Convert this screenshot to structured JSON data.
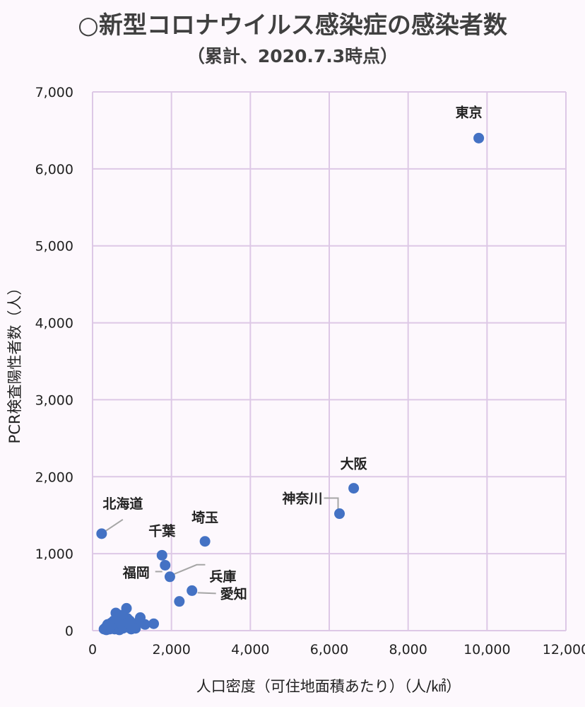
{
  "chart_data": {
    "type": "scatter",
    "title": "○新型コロナウイルス感染症の感染者数",
    "subtitle": "（累計、2020.7.3時点）",
    "xlabel": "人口密度（可住地面積あたり）（人/㎢）",
    "ylabel": "PCR検査陽性者数（人）",
    "xlim": [
      0,
      12000
    ],
    "ylim": [
      0,
      7000
    ],
    "x_ticks": [
      "0",
      "2,000",
      "4,000",
      "6,000",
      "8,000",
      "10,000",
      "12,000"
    ],
    "y_ticks": [
      "0",
      "1,000",
      "2,000",
      "3,000",
      "4,000",
      "5,000",
      "6,000",
      "7,000"
    ],
    "grid": true,
    "color": "#4472c4",
    "labeled_points": [
      {
        "label": "東京",
        "x": 9790,
        "y": 6400
      },
      {
        "label": "大阪",
        "x": 6620,
        "y": 1850
      },
      {
        "label": "神奈川",
        "x": 6260,
        "y": 1520
      },
      {
        "label": "北海道",
        "x": 230,
        "y": 1260
      },
      {
        "label": "埼玉",
        "x": 2850,
        "y": 1160
      },
      {
        "label": "千葉",
        "x": 1760,
        "y": 980
      },
      {
        "label": "福岡",
        "x": 1840,
        "y": 850
      },
      {
        "label": "兵庫",
        "x": 1960,
        "y": 700
      },
      {
        "label": "愛知",
        "x": 2520,
        "y": 520
      }
    ],
    "other_points": [
      {
        "x": 2200,
        "y": 380
      },
      {
        "x": 860,
        "y": 290
      },
      {
        "x": 590,
        "y": 230
      },
      {
        "x": 1550,
        "y": 90
      },
      {
        "x": 1330,
        "y": 80
      },
      {
        "x": 1210,
        "y": 170
      },
      {
        "x": 1160,
        "y": 110
      },
      {
        "x": 1030,
        "y": 70
      },
      {
        "x": 940,
        "y": 130
      },
      {
        "x": 920,
        "y": 40
      },
      {
        "x": 880,
        "y": 160
      },
      {
        "x": 800,
        "y": 90
      },
      {
        "x": 770,
        "y": 30
      },
      {
        "x": 740,
        "y": 120
      },
      {
        "x": 700,
        "y": 60
      },
      {
        "x": 680,
        "y": 10
      },
      {
        "x": 650,
        "y": 140
      },
      {
        "x": 620,
        "y": 50
      },
      {
        "x": 590,
        "y": 90
      },
      {
        "x": 560,
        "y": 20
      },
      {
        "x": 530,
        "y": 70
      },
      {
        "x": 500,
        "y": 40
      },
      {
        "x": 470,
        "y": 100
      },
      {
        "x": 440,
        "y": 20
      },
      {
        "x": 410,
        "y": 60
      },
      {
        "x": 380,
        "y": 80
      },
      {
        "x": 350,
        "y": 10
      },
      {
        "x": 330,
        "y": 40
      },
      {
        "x": 290,
        "y": 20
      },
      {
        "x": 980,
        "y": 20
      },
      {
        "x": 720,
        "y": 200
      },
      {
        "x": 850,
        "y": 50
      },
      {
        "x": 630,
        "y": 110
      },
      {
        "x": 1090,
        "y": 30
      },
      {
        "x": 760,
        "y": 70
      },
      {
        "x": 540,
        "y": 130
      },
      {
        "x": 460,
        "y": 55
      },
      {
        "x": 900,
        "y": 100
      }
    ]
  }
}
